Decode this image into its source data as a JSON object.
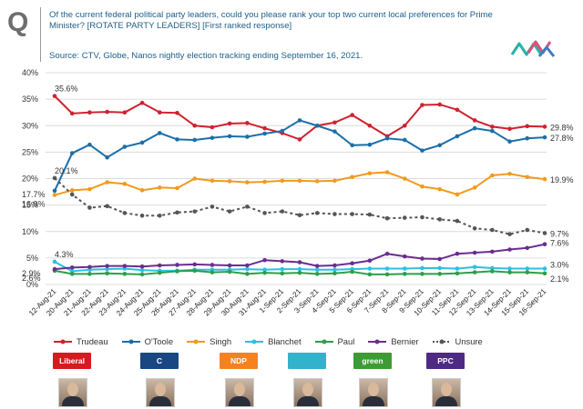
{
  "header": {
    "q_letter": "Q",
    "question": "Of the current federal political party leaders, could you please rank your top two current local preferences for Prime Minister? [ROTATE PARTY LEADERS] [First ranked response]",
    "source": "Source: CTV, Globe, Nanos nightly election tracking ending September 16, 2021."
  },
  "brand": {
    "logo_icon": "nanos-wave-logo",
    "colors": [
      "#2bb0a8",
      "#e0507a",
      "#3a7fc0"
    ]
  },
  "chart_data": {
    "type": "line",
    "title": "",
    "xlabel": "",
    "ylabel": "",
    "ylim": [
      0,
      40
    ],
    "yticks": [
      "0%",
      "5%",
      "10%",
      "15%",
      "20%",
      "25%",
      "30%",
      "35%",
      "40%"
    ],
    "grid": true,
    "legend_position": "bottom",
    "x": [
      "12-Aug-21",
      "20-Aug-21",
      "21-Aug-21",
      "22-Aug-21",
      "23-Aug-21",
      "24-Aug-21",
      "25-Aug-21",
      "26-Aug-21",
      "27-Aug-21",
      "28-Aug-21",
      "29-Aug-21",
      "30-Aug-21",
      "31-Aug-21",
      "1-Sep-21",
      "2-Sep-21",
      "3-Sep-21",
      "4-Sep-21",
      "5-Sep-21",
      "6-Sep-21",
      "7-Sep-21",
      "8-Sep-21",
      "9-Sep-21",
      "10-Sep-21",
      "11-Sep-21",
      "12-Sep-21",
      "13-Sep-21",
      "14-Sep-21",
      "15-Sep-21",
      "16-Sep-21"
    ],
    "series": [
      {
        "name": "Trudeau",
        "color": "#d1202f",
        "dash": false,
        "values": [
          35.6,
          32.3,
          32.5,
          32.6,
          32.5,
          34.3,
          32.5,
          32.4,
          30.0,
          29.7,
          30.4,
          30.5,
          29.5,
          28.6,
          27.4,
          30.0,
          30.6,
          32.0,
          30.0,
          28.0,
          30.0,
          33.9,
          34.0,
          33.0,
          31.0,
          29.8,
          29.4,
          29.9,
          29.8
        ],
        "start_label": "35.6%",
        "end_label": "29.8%"
      },
      {
        "name": "O'Toole",
        "color": "#1b6fa8",
        "dash": false,
        "values": [
          17.7,
          24.8,
          26.4,
          24.0,
          26.0,
          26.8,
          28.6,
          27.4,
          27.3,
          27.7,
          28.0,
          27.9,
          28.5,
          29.0,
          31.0,
          30.0,
          28.9,
          26.3,
          26.4,
          27.6,
          27.3,
          25.3,
          26.3,
          28.0,
          29.5,
          29.0,
          27.0,
          27.6,
          27.8
        ],
        "start_label": "17.7%",
        "end_label": "27.8%"
      },
      {
        "name": "Singh",
        "color": "#f29a1c",
        "dash": false,
        "values": [
          16.9,
          17.8,
          18.0,
          19.3,
          19.0,
          17.8,
          18.3,
          18.2,
          20.0,
          19.6,
          19.5,
          19.3,
          19.4,
          19.6,
          19.6,
          19.5,
          19.6,
          20.3,
          21.0,
          21.2,
          20.0,
          18.5,
          18.0,
          17.0,
          18.3,
          20.6,
          20.9,
          20.3,
          19.9
        ],
        "start_label": "16.9%",
        "end_label": "19.9%"
      },
      {
        "name": "Blanchet",
        "color": "#2cc0e2",
        "dash": false,
        "values": [
          4.3,
          2.5,
          2.8,
          2.9,
          3.0,
          2.7,
          2.6,
          2.6,
          2.8,
          2.8,
          2.8,
          2.9,
          2.8,
          2.9,
          2.9,
          2.8,
          2.8,
          2.9,
          3.0,
          3.0,
          3.0,
          3.1,
          3.1,
          3.0,
          3.3,
          3.1,
          3.0,
          3.0,
          3.0
        ],
        "start_label": "4.3%",
        "end_label": "3.0%"
      },
      {
        "name": "Paul",
        "color": "#2e9e4a",
        "dash": false,
        "values": [
          2.6,
          2.0,
          2.0,
          2.1,
          2.0,
          1.9,
          2.2,
          2.5,
          2.6,
          2.3,
          2.4,
          2.0,
          2.2,
          2.1,
          2.2,
          2.0,
          2.1,
          2.4,
          1.9,
          1.9,
          2.0,
          2.0,
          2.0,
          2.1,
          2.3,
          2.5,
          2.3,
          2.3,
          2.1
        ],
        "start_label": "2.6%",
        "end_label": "2.1%"
      },
      {
        "name": "Bernier",
        "color": "#6b2d8f",
        "dash": false,
        "values": [
          2.9,
          3.2,
          3.3,
          3.5,
          3.5,
          3.4,
          3.6,
          3.7,
          3.8,
          3.7,
          3.6,
          3.6,
          4.6,
          4.4,
          4.2,
          3.5,
          3.6,
          4.0,
          4.5,
          5.8,
          5.3,
          4.9,
          4.8,
          5.8,
          6.0,
          6.2,
          6.6,
          6.9,
          7.6
        ],
        "start_label": "2.9%",
        "end_label": "7.6%"
      },
      {
        "name": "Unsure",
        "color": "#555555",
        "dash": true,
        "values": [
          20.1,
          17.0,
          14.5,
          14.8,
          13.5,
          13.0,
          13.0,
          13.6,
          13.8,
          14.7,
          13.8,
          14.7,
          13.5,
          13.8,
          13.1,
          13.5,
          13.3,
          13.3,
          13.2,
          12.5,
          12.6,
          12.7,
          12.3,
          12.0,
          10.6,
          10.3,
          9.5,
          10.3,
          9.7
        ],
        "start_label": "20.1%",
        "end_label": "9.7%"
      }
    ]
  },
  "parties": [
    {
      "text": "Liberal",
      "color": "#d71920",
      "icon": "liberal-party-logo"
    },
    {
      "text": "C",
      "color": "#1a4782",
      "icon": "conservative-party-logo"
    },
    {
      "text": "NDP",
      "color": "#f58220",
      "icon": "ndp-party-logo"
    },
    {
      "text": "",
      "color": "#33b2cc",
      "icon": "bloc-quebecois-logo"
    },
    {
      "text": "green",
      "color": "#3d9b35",
      "icon": "green-party-logo"
    },
    {
      "text": "PPC",
      "color": "#4e2a84",
      "icon": "ppc-party-logo"
    }
  ],
  "leaders": [
    {
      "icon": "trudeau-photo"
    },
    {
      "icon": "otoole-photo"
    },
    {
      "icon": "singh-photo"
    },
    {
      "icon": "blanchet-photo"
    },
    {
      "icon": "paul-photo"
    },
    {
      "icon": "bernier-photo"
    }
  ]
}
